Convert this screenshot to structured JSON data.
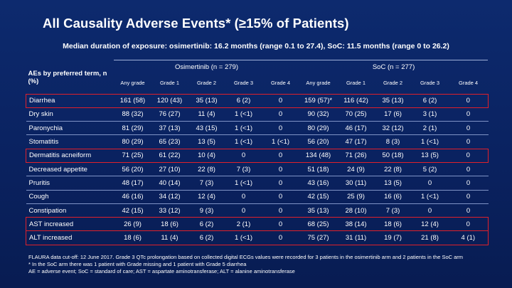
{
  "title": "All Causality Adverse Events* (≥15% of Patients)",
  "subtitle": "Median duration of exposure: osimertinib: 16.2 months (range 0.1 to 27.4), SoC: 11.5 months (range 0 to  26.2)",
  "table": {
    "ae_header": "AEs by preferred term, n (%)",
    "groups": [
      "Osimertinib (n = 279)",
      "SoC (n = 277)"
    ],
    "grade_headers": [
      "Any grade",
      "Grade 1",
      "Grade 2",
      "Grade 3",
      "Grade 4",
      "Any grade",
      "Grade 1",
      "Grade 2",
      "Grade 3",
      "Grade 4"
    ],
    "rows": [
      {
        "term": "Diarrhea",
        "cells": [
          "161 (58)",
          "120 (43)",
          "35 (13)",
          "6 (2)",
          "0",
          "159 (57)*",
          "116 (42)",
          "35 (13)",
          "6 (2)",
          "0"
        ],
        "highlight": true
      },
      {
        "term": "Dry skin",
        "cells": [
          "88 (32)",
          "76 (27)",
          "11 (4)",
          "1 (<1)",
          "0",
          "90 (32)",
          "70 (25)",
          "17 (6)",
          "3 (1)",
          "0"
        ],
        "highlight": false
      },
      {
        "term": "Paronychia",
        "cells": [
          "81 (29)",
          "37 (13)",
          "43 (15)",
          "1 (<1)",
          "0",
          "80 (29)",
          "46 (17)",
          "32 (12)",
          "2 (1)",
          "0"
        ],
        "highlight": false
      },
      {
        "term": "Stomatitis",
        "cells": [
          "80 (29)",
          "65 (23)",
          "13 (5)",
          "1 (<1)",
          "1 (<1)",
          "56 (20)",
          "47 (17)",
          "8 (3)",
          "1 (<1)",
          "0"
        ],
        "highlight": false
      },
      {
        "term": "Dermatitis acneiform",
        "cells": [
          "71 (25)",
          "61 (22)",
          "10 (4)",
          "0",
          "0",
          "134 (48)",
          "71 (26)",
          "50 (18)",
          "13 (5)",
          "0"
        ],
        "highlight": true
      },
      {
        "term": "Decreased appetite",
        "cells": [
          "56 (20)",
          "27 (10)",
          "22 (8)",
          "7 (3)",
          "0",
          "51 (18)",
          "24 (9)",
          "22 (8)",
          "5 (2)",
          "0"
        ],
        "highlight": false
      },
      {
        "term": "Pruritis",
        "cells": [
          "48 (17)",
          "40 (14)",
          "7 (3)",
          "1 (<1)",
          "0",
          "43 (16)",
          "30 (11)",
          "13 (5)",
          "0",
          "0"
        ],
        "highlight": false
      },
      {
        "term": "Cough",
        "cells": [
          "46 (16)",
          "34 (12)",
          "12 (4)",
          "0",
          "0",
          "42 (15)",
          "25 (9)",
          "16 (6)",
          "1 (<1)",
          "0"
        ],
        "highlight": false
      },
      {
        "term": "Constipation",
        "cells": [
          "42 (15)",
          "33 (12)",
          "9 (3)",
          "0",
          "0",
          "35 (13)",
          "28 (10)",
          "7 (3)",
          "0",
          "0"
        ],
        "highlight": false
      },
      {
        "term": "AST increased",
        "cells": [
          "26 (9)",
          "18 (6)",
          "6 (2)",
          "2 (1)",
          "0",
          "68 (25)",
          "38 (14)",
          "18 (6)",
          "12 (4)",
          "0"
        ],
        "highlight": true
      },
      {
        "term": "ALT increased",
        "cells": [
          "18 (6)",
          "11 (4)",
          "6 (2)",
          "1 (<1)",
          "0",
          "75 (27)",
          "31 (11)",
          "19 (7)",
          "21 (8)",
          "4 (1)"
        ],
        "highlight": true
      }
    ]
  },
  "footnotes": [
    "FLAURA data cut-off: 12 June 2017. Grade 3 QTc prolongation based on collected digital ECGs values were recorded for 3 patients in the osimertinib arm and 2 patients in the SoC arm",
    "* In the SoC arm there was 1 patient with Grade missing and 1 patient with Grade 5 diarrhea",
    "AE = adverse event; SoC = standard of care; AST = aspartate aminotransferase; ALT = alanine aminotransferase"
  ],
  "colors": {
    "background": "#0b2463",
    "highlight_border": "#e0202a",
    "row_divider": "#7f93c6"
  }
}
